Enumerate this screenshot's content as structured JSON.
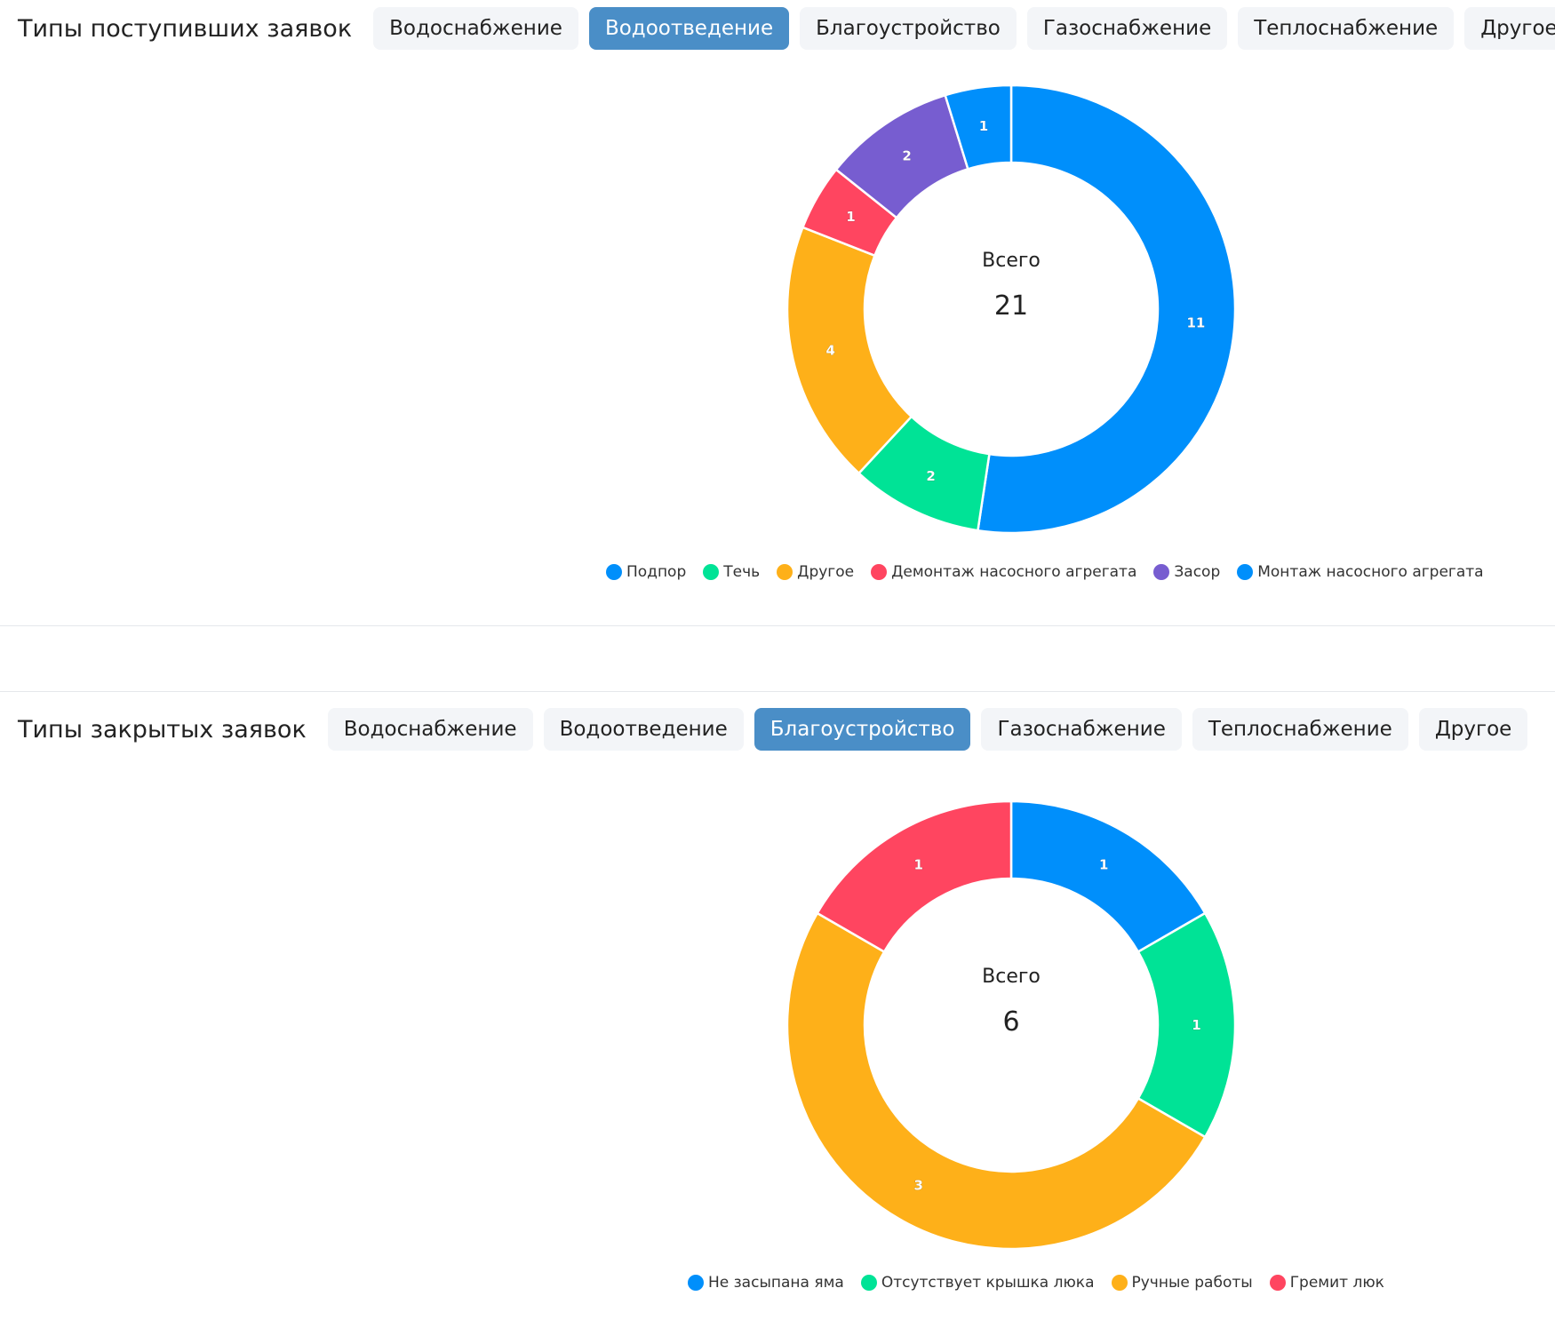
{
  "sections": [
    {
      "title": "Типы поступивших заявок",
      "tabs": [
        "Водоснабжение",
        "Водоотведение",
        "Благоустройство",
        "Газоснабжение",
        "Теплоснабжение",
        "Другое"
      ],
      "active_tab": 1,
      "center_label": "Всего",
      "total": "21"
    },
    {
      "title": "Типы закрытых заявок",
      "tabs": [
        "Водоснабжение",
        "Водоотведение",
        "Благоустройство",
        "Газоснабжение",
        "Теплоснабжение",
        "Другое"
      ],
      "active_tab": 2,
      "center_label": "Всего",
      "total": "6"
    }
  ],
  "chart_data": [
    {
      "type": "pie",
      "donut": true,
      "legend_position": "bottom",
      "categories": [
        "Подпор",
        "Течь",
        "Другое",
        "Демонтаж насосного агрегата",
        "Засор",
        "Монтаж насосного агрегата"
      ],
      "values": [
        11,
        2,
        4,
        1,
        2,
        1
      ],
      "colors": [
        "#008ffb",
        "#00e396",
        "#feb019",
        "#ff4560",
        "#775dd0",
        "#008ffb"
      ]
    },
    {
      "type": "pie",
      "donut": true,
      "legend_position": "bottom",
      "categories": [
        "Не засыпана яма",
        "Отсутствует крышка люка",
        "Ручные работы",
        "Гремит люк"
      ],
      "values": [
        1,
        1,
        3,
        1
      ],
      "colors": [
        "#008ffb",
        "#00e396",
        "#feb019",
        "#ff4560"
      ]
    }
  ]
}
